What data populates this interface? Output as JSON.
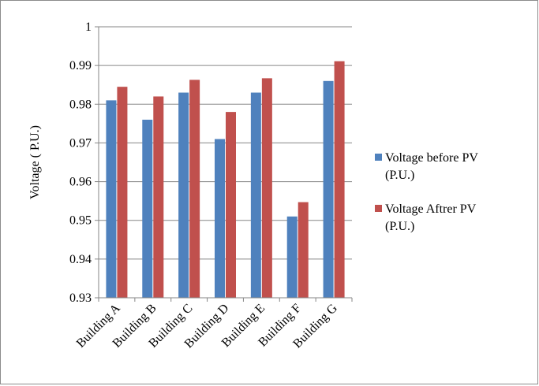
{
  "chart_data": {
    "type": "bar",
    "title": "",
    "xlabel": "",
    "ylabel": "Voltage ( P.U.)",
    "ylim": [
      0.93,
      1.0
    ],
    "yticks": [
      "0.93",
      "0.94",
      "0.95",
      "0.96",
      "0.97",
      "0.98",
      "0.99",
      "1"
    ],
    "grid": "horizontal major gridlines",
    "legend_position": "right",
    "categories": [
      "Building A",
      "Building B",
      "Building C",
      "Building D",
      "Building E",
      "Building F",
      "Building G"
    ],
    "series": [
      {
        "name": "Voltage before PV (P.U.)",
        "legend_lines": [
          "Voltage before PV",
          "(P.U.)"
        ],
        "color": "#4f81bd",
        "values": [
          0.981,
          0.976,
          0.983,
          0.971,
          0.983,
          0.951,
          0.986
        ]
      },
      {
        "name": "Voltage Aftrer PV (P.U.)",
        "legend_lines": [
          "Voltage Aftrer PV",
          "(P.U.)"
        ],
        "color": "#c0504d",
        "values": [
          0.9845,
          0.982,
          0.9863,
          0.978,
          0.9867,
          0.9547,
          0.9911
        ]
      }
    ]
  }
}
